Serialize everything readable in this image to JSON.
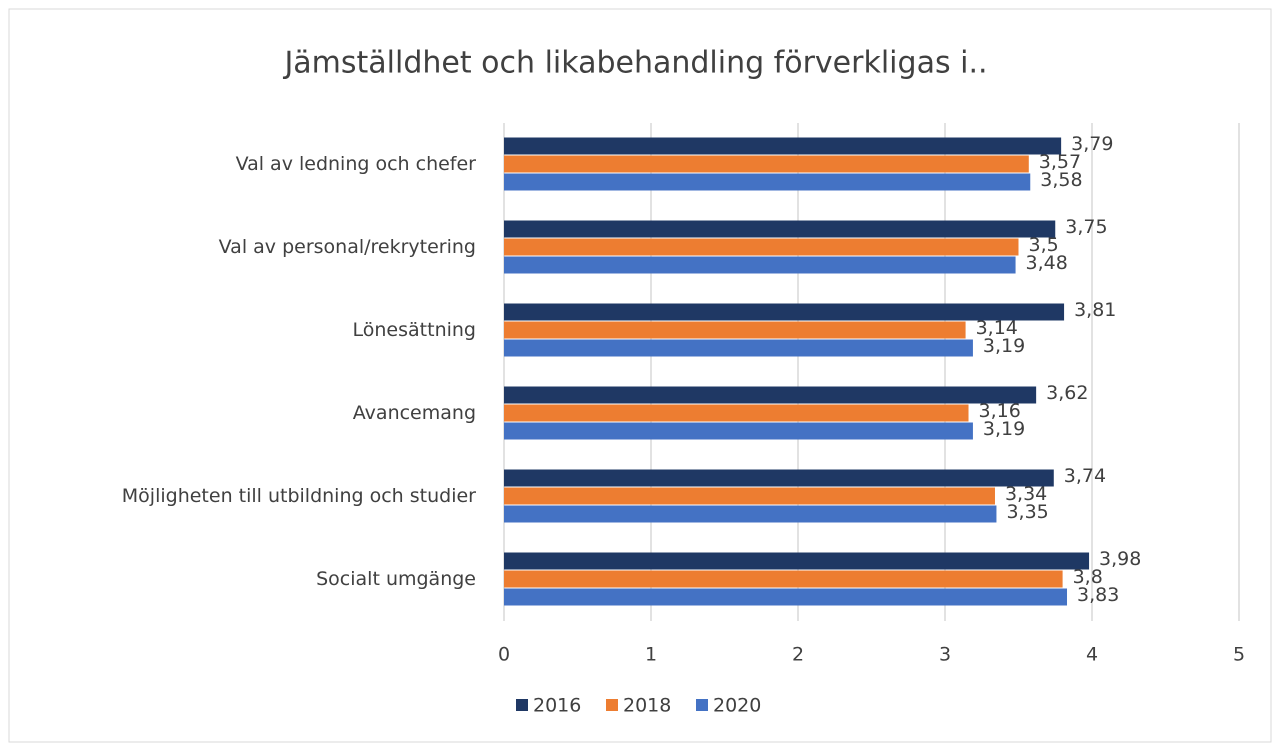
{
  "chart_data": {
    "type": "bar",
    "orientation": "horizontal",
    "title": "Jämställdhet och likabehandling förverkligas i..",
    "categories": [
      "Val av ledning och chefer",
      "Val av personal/rekrytering",
      "Lönesättning",
      "Avancemang",
      "Möjligheten till utbildning och studier",
      "Socialt umgänge"
    ],
    "series": [
      {
        "name": "2016",
        "color": "#1f3864",
        "values": [
          3.79,
          3.75,
          3.81,
          3.62,
          3.74,
          3.98
        ],
        "value_labels": [
          "3,79",
          "3,75",
          "3,81",
          "3,62",
          "3,74",
          "3,98"
        ]
      },
      {
        "name": "2018",
        "color": "#ed7d31",
        "values": [
          3.57,
          3.5,
          3.14,
          3.16,
          3.34,
          3.8
        ],
        "value_labels": [
          "3,57",
          "3,5",
          "3,14",
          "3,16",
          "3,34",
          "3,8"
        ]
      },
      {
        "name": "2020",
        "color": "#4472c4",
        "values": [
          3.58,
          3.48,
          3.19,
          3.19,
          3.35,
          3.83
        ],
        "value_labels": [
          "3,58",
          "3,48",
          "3,19",
          "3,19",
          "3,35",
          "3,83"
        ]
      }
    ],
    "xlim": [
      0,
      5
    ],
    "xticks": [
      0,
      1,
      2,
      3,
      4,
      5
    ],
    "grid": true,
    "legend": "bottom"
  }
}
